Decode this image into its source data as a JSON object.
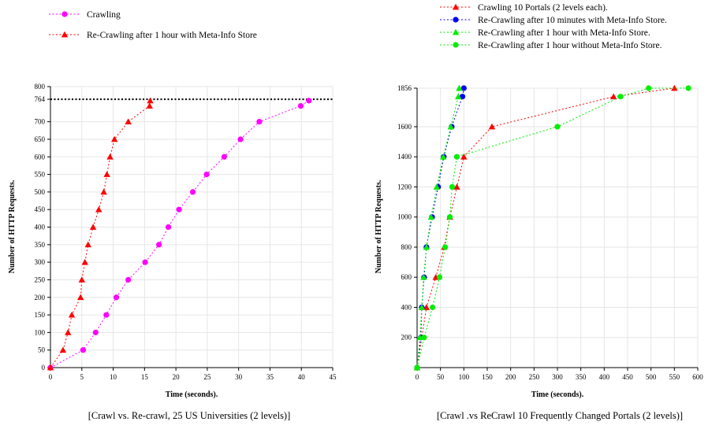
{
  "chart_data": [
    {
      "type": "line",
      "caption": "[Crawl vs. Re-crawl, 25 US Universities (2 levels)]",
      "xlabel": "Time (seconds).",
      "ylabel": "Number of HTTP Requests.",
      "xlim": [
        0,
        45
      ],
      "ylim": [
        0,
        800
      ],
      "xticks": [
        0,
        5,
        10,
        15,
        20,
        25,
        30,
        35,
        40,
        45
      ],
      "yticks": [
        0,
        50,
        100,
        150,
        200,
        250,
        300,
        350,
        400,
        450,
        500,
        550,
        600,
        650,
        700,
        764,
        800
      ],
      "grid": true,
      "legend_position": "top-left, outside plot",
      "reference_line": {
        "y": 764,
        "style": "dotted",
        "color": "#000000"
      },
      "series": [
        {
          "name": "Crawling",
          "color": "#ff00ff",
          "marker": "circle",
          "points": [
            [
              0,
              0
            ],
            [
              5.2,
              50
            ],
            [
              7.2,
              100
            ],
            [
              8.9,
              150
            ],
            [
              10.5,
              200
            ],
            [
              12.4,
              250
            ],
            [
              15.1,
              300
            ],
            [
              17.3,
              350
            ],
            [
              18.8,
              400
            ],
            [
              20.5,
              450
            ],
            [
              22.7,
              500
            ],
            [
              24.9,
              550
            ],
            [
              27.7,
              600
            ],
            [
              30.3,
              650
            ],
            [
              33.3,
              700
            ],
            [
              39.9,
              745
            ],
            [
              41.2,
              760
            ]
          ]
        },
        {
          "name": "Re-Crawling after 1 hour with Meta-Info Store",
          "color": "#ff0000",
          "marker": "triangle",
          "points": [
            [
              0,
              0
            ],
            [
              2.0,
              50
            ],
            [
              2.8,
              100
            ],
            [
              3.4,
              150
            ],
            [
              4.8,
              200
            ],
            [
              5.0,
              250
            ],
            [
              5.5,
              300
            ],
            [
              6.0,
              350
            ],
            [
              6.8,
              400
            ],
            [
              7.7,
              450
            ],
            [
              8.5,
              500
            ],
            [
              9.0,
              550
            ],
            [
              9.5,
              600
            ],
            [
              10.2,
              650
            ],
            [
              12.4,
              700
            ],
            [
              15.8,
              745
            ],
            [
              15.9,
              760
            ]
          ]
        }
      ]
    },
    {
      "type": "line",
      "caption": "[Crawl .vs ReCrawl 10 Frequently Changed Portals (2 levels)]",
      "xlabel": "Time (seconds).",
      "ylabel": "Number of HTTP Requests.",
      "xlim": [
        0,
        600
      ],
      "ylim": [
        0,
        1856
      ],
      "xticks": [
        0,
        50,
        100,
        150,
        200,
        250,
        300,
        350,
        400,
        450,
        500,
        550,
        600
      ],
      "yticks": [
        200,
        400,
        600,
        800,
        1000,
        1200,
        1400,
        1600,
        1856
      ],
      "grid": true,
      "legend_position": "top, outside plot",
      "series": [
        {
          "name": "Crawling 10 Portals (2 levels each).",
          "color": "#ff0000",
          "marker": "triangle",
          "points": [
            [
              0,
              0
            ],
            [
              20,
              400
            ],
            [
              40,
              600
            ],
            [
              58,
              800
            ],
            [
              70,
              1000
            ],
            [
              85,
              1200
            ],
            [
              100,
              1400
            ],
            [
              160,
              1600
            ],
            [
              420,
              1800
            ],
            [
              550,
              1856
            ]
          ]
        },
        {
          "name": "Re-Crawling after 10 minutes with Meta-Info Store.",
          "color": "#0000ff",
          "marker": "circle",
          "points": [
            [
              0,
              0
            ],
            [
              8,
              200
            ],
            [
              10,
              400
            ],
            [
              15,
              600
            ],
            [
              20,
              800
            ],
            [
              32,
              1000
            ],
            [
              45,
              1200
            ],
            [
              57,
              1400
            ],
            [
              74,
              1600
            ],
            [
              97,
              1800
            ],
            [
              100,
              1856
            ]
          ]
        },
        {
          "name": "Re-Crawling after 1 hour with Meta-Info Store.",
          "color": "#00ee00",
          "marker": "triangle",
          "points": [
            [
              0,
              0
            ],
            [
              6,
              200
            ],
            [
              10,
              400
            ],
            [
              14,
              600
            ],
            [
              20,
              800
            ],
            [
              30,
              1000
            ],
            [
              42,
              1200
            ],
            [
              56,
              1400
            ],
            [
              72,
              1600
            ],
            [
              88,
              1800
            ],
            [
              90,
              1856
            ]
          ]
        },
        {
          "name": "Re-Crawling after 1 hour without Meta-Info Store.",
          "color": "#00ee00",
          "marker": "circle",
          "points": [
            [
              0,
              0
            ],
            [
              15,
              200
            ],
            [
              33,
              400
            ],
            [
              48,
              600
            ],
            [
              60,
              800
            ],
            [
              70,
              1000
            ],
            [
              75,
              1200
            ],
            [
              85,
              1400
            ],
            [
              300,
              1600
            ],
            [
              435,
              1800
            ],
            [
              495,
              1856
            ],
            [
              580,
              1856
            ]
          ]
        }
      ]
    }
  ]
}
